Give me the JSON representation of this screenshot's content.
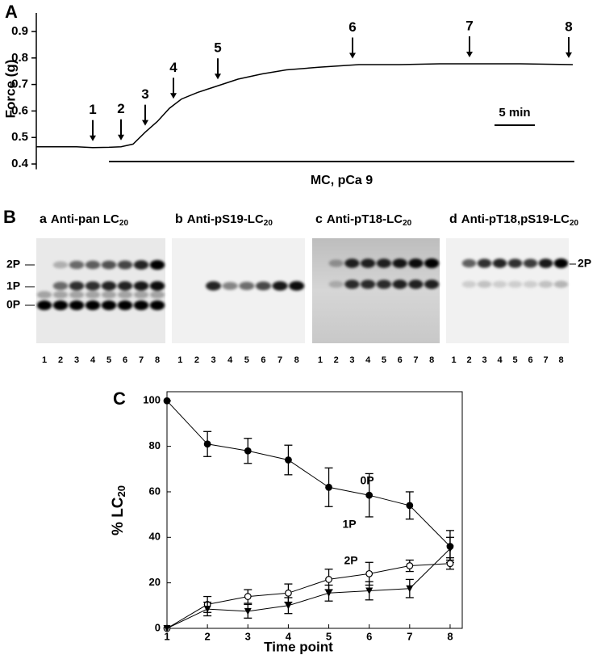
{
  "chart_data": [
    {
      "type": "line",
      "panel": "A",
      "ylabel": "Force (g)",
      "color": "#000000",
      "x": [
        0,
        5,
        7,
        9,
        10.5,
        12,
        13.5,
        15,
        16.5,
        18,
        20,
        22,
        25,
        28,
        31,
        35,
        40,
        45,
        50,
        55,
        60,
        66.5
      ],
      "values": [
        0.465,
        0.465,
        0.462,
        0.463,
        0.465,
        0.475,
        0.52,
        0.56,
        0.61,
        0.645,
        0.67,
        0.69,
        0.72,
        0.74,
        0.755,
        0.765,
        0.775,
        0.775,
        0.778,
        0.778,
        0.778,
        0.775
      ],
      "xlim": [
        0,
        66.5
      ],
      "ylim": [
        0.38,
        0.97
      ],
      "yticks": [
        0.4,
        0.5,
        0.6,
        0.7,
        0.8,
        0.9
      ],
      "markers": {
        "labels": [
          "1",
          "2",
          "3",
          "4",
          "5",
          "6",
          "7",
          "8"
        ],
        "x": [
          7,
          10.5,
          13.5,
          17,
          22.5,
          39.2,
          53.7,
          66
        ]
      },
      "scale_bar": {
        "label": "5 min",
        "length": 5
      },
      "treatment": {
        "label": "MC, pCa 9",
        "x": [
          9,
          66.7
        ]
      }
    },
    {
      "type": "line",
      "panel": "C",
      "xlabel": "Time point",
      "ylabel": "% LC",
      "ylabel_sub": "20",
      "x": [
        1,
        2,
        3,
        4,
        5,
        6,
        7,
        8
      ],
      "xlim": [
        1,
        8.3
      ],
      "ylim": [
        0,
        104
      ],
      "xticks": [
        1,
        2,
        3,
        4,
        5,
        6,
        7,
        8
      ],
      "yticks": [
        0,
        20,
        40,
        60,
        80,
        100
      ],
      "series": [
        {
          "name": "0P",
          "color": "#000000",
          "marker": "filled-circle",
          "values": [
            100,
            81,
            78,
            74,
            62,
            58.5,
            54,
            36
          ],
          "errors": [
            0,
            5.5,
            5.5,
            6.5,
            8.5,
            9.5,
            6,
            7
          ]
        },
        {
          "name": "1P",
          "color": "#000000",
          "marker": "open-circle",
          "values": [
            0,
            10.5,
            14,
            15.5,
            21.5,
            24,
            27.5,
            28.5
          ],
          "errors": [
            0,
            3.5,
            3,
            4,
            4.5,
            5,
            2.5,
            2.5
          ]
        },
        {
          "name": "2P",
          "color": "#000000",
          "marker": "filled-triangle",
          "values": [
            0,
            8.5,
            7.5,
            10,
            15.5,
            16.5,
            17.5,
            35
          ],
          "errors": [
            0,
            3,
            3,
            3.5,
            3.5,
            4,
            4,
            5
          ]
        }
      ]
    }
  ],
  "blots": {
    "panel": "B",
    "items": [
      {
        "letter": "a",
        "label": "Anti-pan LC",
        "sub": "20",
        "lanes": [
          "1",
          "2",
          "3",
          "4",
          "5",
          "6",
          "7",
          "8"
        ]
      },
      {
        "letter": "b",
        "label": "Anti-pS19-LC",
        "sub": "20",
        "lanes": [
          "1",
          "2",
          "3",
          "4",
          "5",
          "6",
          "7",
          "8"
        ]
      },
      {
        "letter": "c",
        "label": "Anti-pT18-LC",
        "sub": "20",
        "lanes": [
          "1",
          "2",
          "3",
          "4",
          "5",
          "6",
          "7",
          "8"
        ]
      },
      {
        "letter": "d",
        "label": "Anti-pT18,pS19-LC",
        "sub": "20",
        "lanes": [
          "1",
          "2",
          "3",
          "4",
          "5",
          "6",
          "7",
          "8"
        ]
      }
    ],
    "left_labels": [
      "2P",
      "1P",
      "0P"
    ],
    "right_label": "2P"
  }
}
